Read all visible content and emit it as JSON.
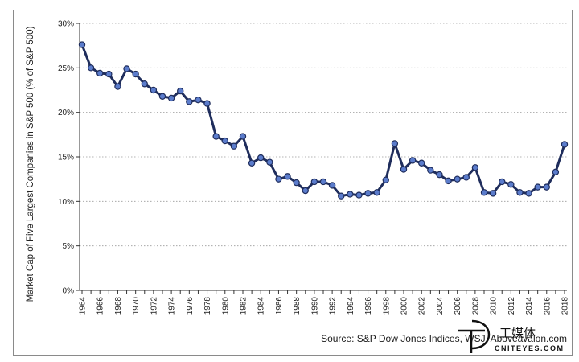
{
  "chart_data": {
    "type": "line",
    "title": "",
    "xlabel": "",
    "ylabel": "Market Cap of Five Largest Companies in S&P 500 (% of S&P 500)",
    "ylim": [
      0,
      30
    ],
    "yticks": [
      "0%",
      "5%",
      "10%",
      "15%",
      "20%",
      "25%",
      "30%"
    ],
    "ytick_values": [
      0,
      5,
      10,
      15,
      20,
      25,
      30
    ],
    "xticks": [
      "1964",
      "1966",
      "1968",
      "1970",
      "1972",
      "1974",
      "1976",
      "1978",
      "1980",
      "1982",
      "1984",
      "1986",
      "1988",
      "1990",
      "1992",
      "1994",
      "1996",
      "1998",
      "2000",
      "2002",
      "2004",
      "2006",
      "2008",
      "2010",
      "2012",
      "2014",
      "2016",
      "2018"
    ],
    "grid": "horizontal dotted",
    "line_color": "#1f2d5c",
    "marker_color": "#5b7ccc",
    "x": [
      1964,
      1965,
      1966,
      1967,
      1968,
      1969,
      1970,
      1971,
      1972,
      1973,
      1974,
      1975,
      1976,
      1977,
      1978,
      1979,
      1980,
      1981,
      1982,
      1983,
      1984,
      1985,
      1986,
      1987,
      1988,
      1989,
      1990,
      1991,
      1992,
      1993,
      1994,
      1995,
      1996,
      1997,
      1998,
      1999,
      2000,
      2001,
      2002,
      2003,
      2004,
      2005,
      2006,
      2007,
      2008,
      2009,
      2010,
      2011,
      2012,
      2013,
      2014,
      2015,
      2016,
      2017,
      2018
    ],
    "values": [
      27.6,
      25.0,
      24.4,
      24.3,
      22.9,
      24.9,
      24.3,
      23.2,
      22.5,
      21.8,
      21.6,
      22.4,
      21.2,
      21.4,
      21.0,
      17.3,
      16.8,
      16.2,
      17.3,
      14.3,
      14.9,
      14.4,
      12.5,
      12.8,
      12.1,
      11.2,
      12.2,
      12.2,
      11.8,
      10.6,
      10.8,
      10.7,
      10.9,
      11.0,
      12.4,
      16.5,
      13.6,
      14.6,
      14.3,
      13.5,
      13.0,
      12.3,
      12.5,
      12.7,
      13.8,
      11.0,
      10.9,
      12.2,
      11.9,
      11.0,
      10.9,
      11.6,
      11.6,
      13.3,
      16.4
    ]
  },
  "source": "Source: S&P Dow Jones Indices, WSJ, Aboveavalon.com",
  "watermark": {
    "cn": "工媒体",
    "en": "CNITEYES.COM",
    "logo_letter": "T"
  }
}
